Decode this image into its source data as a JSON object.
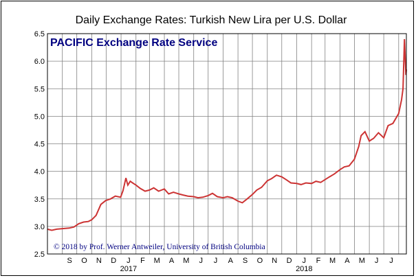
{
  "chart_data": {
    "type": "line",
    "title": "Daily Exchange Rates: Turkish New Lira per U.S. Dollar",
    "subtitle": "PACIFIC Exchange Rate Service",
    "annotation": "© 2018 by Prof. Werner Antweiler, University of British Columbia",
    "xlabel": "",
    "ylabel": "",
    "ylim": [
      2.5,
      6.5
    ],
    "yticks": [
      "2.5",
      "3.0",
      "3.5",
      "4.0",
      "4.5",
      "5.0",
      "5.5",
      "6.0",
      "6.5"
    ],
    "xlim": [
      "2016-08-01",
      "2018-08-17"
    ],
    "month_labels": [
      "S",
      "O",
      "N",
      "D",
      "J",
      "F",
      "M",
      "A",
      "M",
      "J",
      "J",
      "A",
      "S",
      "O",
      "N",
      "D",
      "J",
      "F",
      "M",
      "A",
      "M",
      "J",
      "J"
    ],
    "year_labels": [
      "2017",
      "2018"
    ],
    "grid": true,
    "line_color": "#cc3333",
    "series": [
      {
        "x": [
          "2016-08-01",
          "2016-08-10",
          "2016-08-20",
          "2016-09-01",
          "2016-09-15",
          "2016-09-25",
          "2016-10-05",
          "2016-10-15",
          "2016-10-25",
          "2016-11-01",
          "2016-11-10",
          "2016-11-20",
          "2016-11-30",
          "2016-12-10",
          "2016-12-20",
          "2016-12-31",
          "2017-01-05",
          "2017-01-11",
          "2017-01-15",
          "2017-01-20",
          "2017-01-25",
          "2017-02-01",
          "2017-02-10",
          "2017-02-20",
          "2017-03-01",
          "2017-03-10",
          "2017-03-20",
          "2017-04-01",
          "2017-04-10",
          "2017-04-20",
          "2017-05-01",
          "2017-05-10",
          "2017-05-20",
          "2017-06-01",
          "2017-06-10",
          "2017-06-20",
          "2017-07-01",
          "2017-07-10",
          "2017-07-20",
          "2017-08-01",
          "2017-08-10",
          "2017-08-20",
          "2017-09-01",
          "2017-09-10",
          "2017-09-20",
          "2017-10-01",
          "2017-10-10",
          "2017-10-20",
          "2017-11-01",
          "2017-11-10",
          "2017-11-20",
          "2017-12-01",
          "2017-12-10",
          "2017-12-20",
          "2018-01-01",
          "2018-01-10",
          "2018-01-20",
          "2018-02-01",
          "2018-02-10",
          "2018-02-20",
          "2018-03-01",
          "2018-03-10",
          "2018-03-20",
          "2018-04-01",
          "2018-04-10",
          "2018-04-20",
          "2018-05-01",
          "2018-05-10",
          "2018-05-15",
          "2018-05-23",
          "2018-06-01",
          "2018-06-10",
          "2018-06-20",
          "2018-07-01",
          "2018-07-10",
          "2018-07-20",
          "2018-08-01",
          "2018-08-07",
          "2018-08-10",
          "2018-08-13",
          "2018-08-16",
          "2018-08-17"
        ],
        "values": [
          2.95,
          2.93,
          2.95,
          2.96,
          2.97,
          2.99,
          3.05,
          3.08,
          3.09,
          3.12,
          3.2,
          3.4,
          3.47,
          3.5,
          3.55,
          3.53,
          3.65,
          3.88,
          3.75,
          3.82,
          3.79,
          3.75,
          3.69,
          3.64,
          3.66,
          3.7,
          3.64,
          3.68,
          3.59,
          3.62,
          3.59,
          3.57,
          3.55,
          3.54,
          3.52,
          3.53,
          3.56,
          3.6,
          3.54,
          3.52,
          3.54,
          3.52,
          3.46,
          3.43,
          3.5,
          3.58,
          3.66,
          3.71,
          3.83,
          3.87,
          3.93,
          3.9,
          3.85,
          3.79,
          3.78,
          3.76,
          3.79,
          3.78,
          3.82,
          3.8,
          3.85,
          3.9,
          3.95,
          4.03,
          4.08,
          4.1,
          4.22,
          4.45,
          4.65,
          4.72,
          4.55,
          4.6,
          4.7,
          4.61,
          4.83,
          4.87,
          5.05,
          5.3,
          5.5,
          6.4,
          5.75,
          5.85
        ]
      }
    ]
  }
}
